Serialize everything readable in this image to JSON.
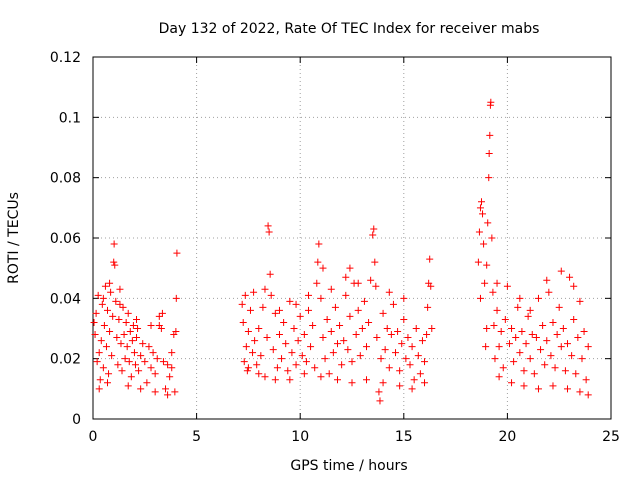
{
  "chart_data": {
    "type": "scatter",
    "title": "Day 132 of 2022, Rate Of TEC Index for receiver mabs",
    "xlabel": "GPS time / hours",
    "ylabel": "ROTI / TECUs",
    "xlim": [
      0,
      25
    ],
    "ylim": [
      0,
      0.12
    ],
    "xticks": [
      0,
      5,
      10,
      15,
      20,
      25
    ],
    "xtick_labels": [
      "0",
      "5",
      "10",
      "15",
      "20",
      "25"
    ],
    "yticks": [
      0,
      0.02,
      0.04,
      0.06,
      0.08,
      0.1,
      0.12
    ],
    "ytick_labels": [
      "0",
      "0.02",
      "0.04",
      "0.06",
      "0.08",
      "0.1",
      "0.12"
    ],
    "grid": true,
    "marker": "plus",
    "color": "#ff0000",
    "series": [
      {
        "points": [
          [
            0.05,
            0.032
          ],
          [
            0.1,
            0.028
          ],
          [
            0.15,
            0.035
          ],
          [
            0.2,
            0.019
          ],
          [
            0.25,
            0.041
          ],
          [
            0.3,
            0.022
          ],
          [
            0.35,
            0.013
          ],
          [
            0.4,
            0.026
          ],
          [
            0.45,
            0.038
          ],
          [
            0.5,
            0.017
          ],
          [
            0.55,
            0.031
          ],
          [
            0.6,
            0.044
          ],
          [
            0.65,
            0.024
          ],
          [
            0.7,
            0.036
          ],
          [
            0.75,
            0.015
          ],
          [
            0.8,
            0.029
          ],
          [
            0.85,
            0.042
          ],
          [
            0.9,
            0.021
          ],
          [
            0.95,
            0.034
          ],
          [
            1.0,
            0.052
          ],
          [
            1.02,
            0.058
          ],
          [
            1.05,
            0.051
          ],
          [
            1.1,
            0.039
          ],
          [
            1.15,
            0.027
          ],
          [
            1.2,
            0.018
          ],
          [
            1.25,
            0.033
          ],
          [
            1.3,
            0.043
          ],
          [
            1.35,
            0.025
          ],
          [
            1.4,
            0.016
          ],
          [
            1.45,
            0.037
          ],
          [
            1.5,
            0.028
          ],
          [
            1.55,
            0.02
          ],
          [
            1.6,
            0.032
          ],
          [
            1.65,
            0.024
          ],
          [
            1.7,
            0.035
          ],
          [
            1.75,
            0.019
          ],
          [
            1.8,
            0.029
          ],
          [
            1.85,
            0.014
          ],
          [
            1.9,
            0.026
          ],
          [
            1.95,
            0.031
          ],
          [
            2.0,
            0.022
          ],
          [
            2.05,
            0.018
          ],
          [
            2.1,
            0.027
          ],
          [
            2.15,
            0.03
          ],
          [
            2.2,
            0.016
          ],
          [
            2.3,
            0.021
          ],
          [
            2.4,
            0.025
          ],
          [
            2.5,
            0.019
          ],
          [
            2.6,
            0.012
          ],
          [
            2.7,
            0.024
          ],
          [
            2.8,
            0.017
          ],
          [
            2.9,
            0.022
          ],
          [
            3.0,
            0.015
          ],
          [
            3.1,
            0.02
          ],
          [
            3.2,
            0.034
          ],
          [
            3.3,
            0.03
          ],
          [
            3.35,
            0.035
          ],
          [
            3.4,
            0.019
          ],
          [
            3.5,
            0.01
          ],
          [
            3.6,
            0.018
          ],
          [
            3.7,
            0.014
          ],
          [
            3.8,
            0.022
          ],
          [
            3.9,
            0.028
          ],
          [
            3.95,
            0.009
          ],
          [
            4.0,
            0.029
          ],
          [
            4.02,
            0.04
          ],
          [
            4.05,
            0.055
          ],
          [
            0.3,
            0.01
          ],
          [
            0.7,
            0.012
          ],
          [
            1.7,
            0.011
          ],
          [
            2.3,
            0.01
          ],
          [
            3.0,
            0.009
          ],
          [
            3.6,
            0.008
          ],
          [
            0.5,
            0.04
          ],
          [
            0.8,
            0.045
          ],
          [
            1.3,
            0.038
          ],
          [
            2.1,
            0.033
          ],
          [
            2.8,
            0.031
          ],
          [
            3.2,
            0.031
          ],
          [
            3.8,
            0.017
          ],
          [
            7.2,
            0.038
          ],
          [
            7.25,
            0.032
          ],
          [
            7.3,
            0.019
          ],
          [
            7.35,
            0.041
          ],
          [
            7.4,
            0.024
          ],
          [
            7.45,
            0.016
          ],
          [
            7.5,
            0.029
          ],
          [
            7.6,
            0.036
          ],
          [
            7.7,
            0.022
          ],
          [
            7.75,
            0.042
          ],
          [
            7.8,
            0.026
          ],
          [
            7.9,
            0.018
          ],
          [
            8.0,
            0.03
          ],
          [
            8.1,
            0.021
          ],
          [
            8.2,
            0.037
          ],
          [
            8.3,
            0.014
          ],
          [
            8.4,
            0.027
          ],
          [
            8.45,
            0.064
          ],
          [
            8.5,
            0.062
          ],
          [
            8.55,
            0.048
          ],
          [
            8.6,
            0.041
          ],
          [
            8.7,
            0.023
          ],
          [
            8.8,
            0.035
          ],
          [
            8.9,
            0.017
          ],
          [
            9.0,
            0.028
          ],
          [
            9.1,
            0.02
          ],
          [
            9.2,
            0.032
          ],
          [
            9.3,
            0.025
          ],
          [
            9.4,
            0.016
          ],
          [
            9.5,
            0.039
          ],
          [
            9.6,
            0.022
          ],
          [
            9.7,
            0.03
          ],
          [
            9.8,
            0.018
          ],
          [
            9.9,
            0.026
          ],
          [
            10.0,
            0.034
          ],
          [
            10.1,
            0.021
          ],
          [
            10.2,
            0.028
          ],
          [
            10.3,
            0.019
          ],
          [
            10.4,
            0.036
          ],
          [
            10.5,
            0.024
          ],
          [
            10.6,
            0.031
          ],
          [
            10.7,
            0.017
          ],
          [
            10.8,
            0.045
          ],
          [
            10.85,
            0.052
          ],
          [
            10.9,
            0.058
          ],
          [
            11.0,
            0.04
          ],
          [
            11.1,
            0.027
          ],
          [
            11.2,
            0.02
          ],
          [
            11.3,
            0.033
          ],
          [
            11.4,
            0.015
          ],
          [
            11.5,
            0.029
          ],
          [
            11.6,
            0.022
          ],
          [
            11.7,
            0.037
          ],
          [
            11.8,
            0.025
          ],
          [
            11.9,
            0.031
          ],
          [
            12.0,
            0.018
          ],
          [
            12.1,
            0.026
          ],
          [
            12.2,
            0.041
          ],
          [
            12.3,
            0.023
          ],
          [
            12.4,
            0.034
          ],
          [
            12.5,
            0.019
          ],
          [
            12.6,
            0.045
          ],
          [
            12.7,
            0.028
          ],
          [
            12.8,
            0.036
          ],
          [
            12.9,
            0.021
          ],
          [
            13.0,
            0.03
          ],
          [
            13.1,
            0.039
          ],
          [
            13.2,
            0.024
          ],
          [
            13.3,
            0.032
          ],
          [
            13.4,
            0.046
          ],
          [
            13.5,
            0.061
          ],
          [
            13.55,
            0.063
          ],
          [
            13.6,
            0.052
          ],
          [
            13.65,
            0.044
          ],
          [
            13.7,
            0.027
          ],
          [
            13.8,
            0.009
          ],
          [
            13.85,
            0.006
          ],
          [
            13.9,
            0.02
          ],
          [
            14.0,
            0.035
          ],
          [
            14.1,
            0.023
          ],
          [
            14.2,
            0.03
          ],
          [
            14.3,
            0.017
          ],
          [
            14.4,
            0.028
          ],
          [
            14.5,
            0.038
          ],
          [
            14.6,
            0.022
          ],
          [
            14.7,
            0.029
          ],
          [
            14.8,
            0.016
          ],
          [
            14.9,
            0.025
          ],
          [
            15.0,
            0.033
          ],
          [
            15.1,
            0.02
          ],
          [
            15.2,
            0.027
          ],
          [
            15.3,
            0.018
          ],
          [
            15.4,
            0.024
          ],
          [
            15.5,
            0.013
          ],
          [
            15.6,
            0.03
          ],
          [
            15.7,
            0.021
          ],
          [
            15.8,
            0.015
          ],
          [
            15.9,
            0.026
          ],
          [
            16.0,
            0.019
          ],
          [
            16.1,
            0.028
          ],
          [
            16.15,
            0.037
          ],
          [
            16.2,
            0.045
          ],
          [
            16.25,
            0.053
          ],
          [
            16.3,
            0.044
          ],
          [
            16.35,
            0.03
          ],
          [
            7.5,
            0.017
          ],
          [
            8.0,
            0.015
          ],
          [
            8.8,
            0.013
          ],
          [
            9.5,
            0.013
          ],
          [
            10.2,
            0.015
          ],
          [
            11.0,
            0.014
          ],
          [
            11.8,
            0.013
          ],
          [
            12.5,
            0.012
          ],
          [
            13.2,
            0.013
          ],
          [
            14.0,
            0.012
          ],
          [
            14.8,
            0.011
          ],
          [
            15.4,
            0.01
          ],
          [
            16.0,
            0.012
          ],
          [
            9.0,
            0.036
          ],
          [
            10.4,
            0.041
          ],
          [
            11.5,
            0.043
          ],
          [
            12.2,
            0.047
          ],
          [
            12.8,
            0.045
          ],
          [
            14.3,
            0.042
          ],
          [
            15.0,
            0.04
          ],
          [
            8.3,
            0.043
          ],
          [
            9.8,
            0.038
          ],
          [
            11.1,
            0.05
          ],
          [
            12.4,
            0.05
          ],
          [
            18.6,
            0.052
          ],
          [
            18.65,
            0.062
          ],
          [
            18.7,
            0.07
          ],
          [
            18.75,
            0.072
          ],
          [
            18.8,
            0.068
          ],
          [
            18.85,
            0.058
          ],
          [
            18.9,
            0.045
          ],
          [
            18.95,
            0.024
          ],
          [
            19.0,
            0.051
          ],
          [
            19.05,
            0.065
          ],
          [
            19.1,
            0.08
          ],
          [
            19.12,
            0.088
          ],
          [
            19.15,
            0.094
          ],
          [
            19.18,
            0.104
          ],
          [
            19.2,
            0.105
          ],
          [
            19.25,
            0.06
          ],
          [
            19.3,
            0.042
          ],
          [
            19.35,
            0.031
          ],
          [
            19.4,
            0.02
          ],
          [
            19.5,
            0.036
          ],
          [
            19.6,
            0.024
          ],
          [
            19.7,
            0.029
          ],
          [
            19.8,
            0.017
          ],
          [
            19.9,
            0.033
          ],
          [
            20.0,
            0.044
          ],
          [
            20.1,
            0.025
          ],
          [
            20.2,
            0.03
          ],
          [
            20.3,
            0.019
          ],
          [
            20.4,
            0.027
          ],
          [
            20.5,
            0.037
          ],
          [
            20.6,
            0.022
          ],
          [
            20.7,
            0.029
          ],
          [
            20.8,
            0.016
          ],
          [
            20.9,
            0.025
          ],
          [
            21.0,
            0.034
          ],
          [
            21.1,
            0.02
          ],
          [
            21.2,
            0.028
          ],
          [
            21.3,
            0.015
          ],
          [
            21.4,
            0.027
          ],
          [
            21.5,
            0.04
          ],
          [
            21.6,
            0.023
          ],
          [
            21.7,
            0.031
          ],
          [
            21.8,
            0.018
          ],
          [
            21.9,
            0.026
          ],
          [
            22.0,
            0.042
          ],
          [
            22.1,
            0.021
          ],
          [
            22.2,
            0.032
          ],
          [
            22.3,
            0.017
          ],
          [
            22.4,
            0.028
          ],
          [
            22.5,
            0.037
          ],
          [
            22.6,
            0.024
          ],
          [
            22.7,
            0.03
          ],
          [
            22.8,
            0.016
          ],
          [
            22.9,
            0.025
          ],
          [
            23.0,
            0.047
          ],
          [
            23.1,
            0.021
          ],
          [
            23.2,
            0.033
          ],
          [
            23.3,
            0.015
          ],
          [
            23.4,
            0.027
          ],
          [
            23.5,
            0.039
          ],
          [
            23.6,
            0.02
          ],
          [
            23.7,
            0.029
          ],
          [
            23.8,
            0.013
          ],
          [
            23.9,
            0.024
          ],
          [
            19.6,
            0.014
          ],
          [
            20.2,
            0.012
          ],
          [
            20.8,
            0.011
          ],
          [
            21.5,
            0.01
          ],
          [
            22.2,
            0.011
          ],
          [
            22.9,
            0.01
          ],
          [
            23.5,
            0.009
          ],
          [
            23.9,
            0.008
          ],
          [
            19.5,
            0.045
          ],
          [
            20.6,
            0.04
          ],
          [
            21.9,
            0.046
          ],
          [
            22.6,
            0.049
          ],
          [
            23.2,
            0.044
          ],
          [
            18.7,
            0.04
          ],
          [
            19.0,
            0.03
          ],
          [
            21.1,
            0.036
          ]
        ]
      }
    ]
  }
}
